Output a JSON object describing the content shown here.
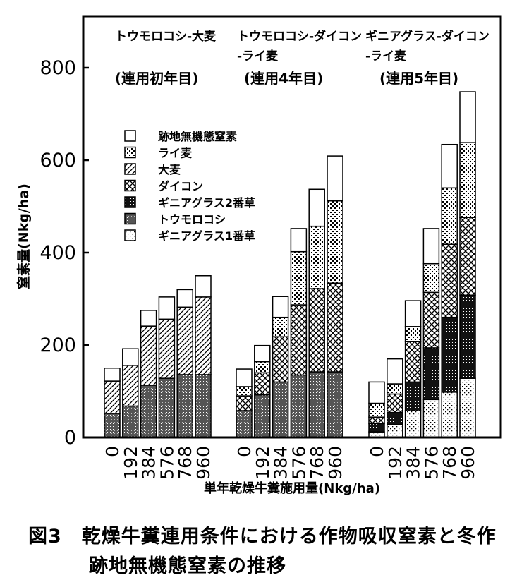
{
  "chart_data": {
    "type": "bar",
    "stacked": true,
    "ylabel": "窒素量(Nkg/ha)",
    "xlabel": "単年乾燥牛糞施用量(Nkg/ha)",
    "ylim": [
      0,
      900
    ],
    "yticks": [
      0,
      200,
      400,
      600,
      800
    ],
    "grid": false,
    "legend_position": "left-middle",
    "legend": [
      {
        "key": "residual",
        "label": "跡地無機態窒素",
        "pattern": "white"
      },
      {
        "key": "rye",
        "label": "ライ麦",
        "pattern": "dots"
      },
      {
        "key": "barley",
        "label": "大麦",
        "pattern": "diag"
      },
      {
        "key": "daikon",
        "label": "ダイコン",
        "pattern": "cross"
      },
      {
        "key": "guinea2",
        "label": "ギニアグラス2番草",
        "pattern": "black"
      },
      {
        "key": "corn",
        "label": "トウモロコシ",
        "pattern": "dark"
      },
      {
        "key": "guinea1",
        "label": "ギニアグラス1番草",
        "pattern": "sparse"
      }
    ],
    "groups": [
      {
        "title_lines": [
          "トウモロコシ-大麦",
          ""
        ],
        "subtitle": "(連用初年目)",
        "categories": [
          "0",
          "192",
          "384",
          "576",
          "768",
          "960"
        ],
        "stack_order": [
          "corn",
          "barley",
          "residual"
        ],
        "series": {
          "corn": [
            52,
            68,
            113,
            128,
            136,
            136
          ],
          "barley": [
            70,
            88,
            128,
            128,
            146,
            168
          ],
          "residual": [
            28,
            36,
            34,
            48,
            38,
            46
          ]
        }
      },
      {
        "title_lines": [
          "トウモロコシ-ダイコン",
          "-ライ麦"
        ],
        "subtitle": "(連用4年目)",
        "categories": [
          "0",
          "192",
          "384",
          "576",
          "768",
          "960"
        ],
        "stack_order": [
          "corn",
          "daikon",
          "rye",
          "residual"
        ],
        "series": {
          "corn": [
            58,
            92,
            120,
            135,
            142,
            142
          ],
          "daikon": [
            32,
            48,
            98,
            152,
            180,
            192
          ],
          "rye": [
            20,
            24,
            42,
            115,
            135,
            178
          ],
          "residual": [
            38,
            35,
            45,
            50,
            80,
            97
          ]
        }
      },
      {
        "title_lines": [
          "ギニアグラス-ダイコン",
          "-ライ麦"
        ],
        "subtitle": "(連用5年目)",
        "categories": [
          "0",
          "192",
          "384",
          "576",
          "768",
          "960"
        ],
        "stack_order": [
          "guinea1",
          "guinea2",
          "daikon",
          "rye",
          "residual"
        ],
        "series": {
          "guinea1": [
            12,
            28,
            58,
            82,
            98,
            128
          ],
          "guinea2": [
            18,
            26,
            62,
            112,
            162,
            180
          ],
          "daikon": [
            14,
            40,
            88,
            120,
            158,
            168
          ],
          "rye": [
            30,
            22,
            32,
            62,
            122,
            162
          ],
          "residual": [
            46,
            54,
            56,
            76,
            94,
            110
          ]
        }
      }
    ]
  },
  "caption": {
    "line1": "図3　乾燥牛糞連用条件における作物吸収窒素と冬作",
    "line2": "跡地無機態窒素の推移"
  }
}
